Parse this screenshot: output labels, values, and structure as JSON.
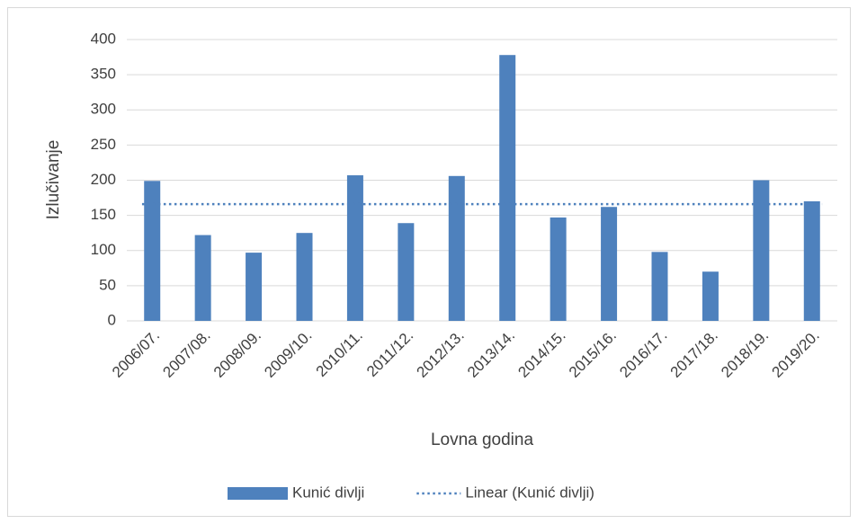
{
  "chart_data": {
    "type": "bar",
    "x_label": "Lovna godina",
    "y_label": "Izlučivanje",
    "categories": [
      "2006/07.",
      "2007/08.",
      "2008/09.",
      "2009/10.",
      "2010/11.",
      "2011/12.",
      "2012/13.",
      "2013/14.",
      "2014/15.",
      "2015/16.",
      "2016/17.",
      "2017/18.",
      "2018/19.",
      "2019/20."
    ],
    "series": [
      {
        "name": "Kunić divlji",
        "type": "bar",
        "color": "#4e81bd",
        "values": [
          199,
          122,
          97,
          125,
          207,
          139,
          206,
          378,
          147,
          162,
          98,
          70,
          200,
          170
        ]
      },
      {
        "name": "Linear (Kunić divlji)",
        "type": "line",
        "dash": "dotted",
        "color": "#4e81bd",
        "values": [
          166,
          166,
          166,
          166,
          166,
          166,
          166,
          166,
          166,
          166,
          166,
          166,
          166,
          166
        ]
      }
    ],
    "ylim": [
      0,
      400
    ],
    "yticks": [
      0,
      50,
      100,
      150,
      200,
      250,
      300,
      350,
      400
    ],
    "grid": true,
    "legend": "bottom"
  }
}
